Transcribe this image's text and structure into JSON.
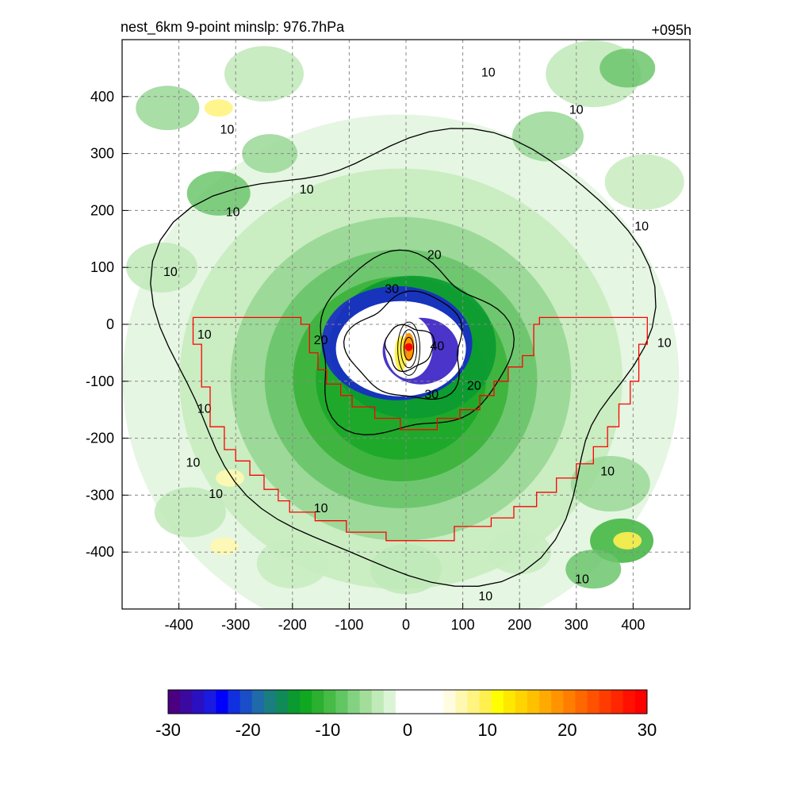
{
  "chart_data": {
    "type": "heatmap",
    "title_left": "nest_6km  9-point minslp: 976.7hPa",
    "title_right": "+095h",
    "xlim": [
      -500,
      500
    ],
    "ylim": [
      -500,
      500
    ],
    "x_ticks": [
      -400,
      -300,
      -200,
      -100,
      0,
      100,
      200,
      300,
      400
    ],
    "y_ticks": [
      400,
      300,
      200,
      100,
      0,
      -100,
      -200,
      -300,
      -400
    ],
    "grid": true,
    "storm_center": {
      "x": 5,
      "y": -40
    },
    "contour_levels": [
      10,
      20,
      30,
      40
    ],
    "contour_labels": [
      {
        "text": "10",
        "x": -315,
        "y": 335
      },
      {
        "text": "10",
        "x": -175,
        "y": 230
      },
      {
        "text": "10",
        "x": -305,
        "y": 190
      },
      {
        "text": "10",
        "x": -415,
        "y": 85
      },
      {
        "text": "10",
        "x": 145,
        "y": 435
      },
      {
        "text": "10",
        "x": 300,
        "y": 370
      },
      {
        "text": "10",
        "x": 415,
        "y": 165
      },
      {
        "text": "10",
        "x": -355,
        "y": -25
      },
      {
        "text": "10",
        "x": -355,
        "y": -155
      },
      {
        "text": "10",
        "x": -375,
        "y": -250
      },
      {
        "text": "10",
        "x": -335,
        "y": -305
      },
      {
        "text": "10",
        "x": -150,
        "y": -330
      },
      {
        "text": "10",
        "x": 455,
        "y": -40
      },
      {
        "text": "10",
        "x": 355,
        "y": -265
      },
      {
        "text": "10",
        "x": 140,
        "y": -485
      },
      {
        "text": "10",
        "x": 310,
        "y": -455
      },
      {
        "text": "20",
        "x": 50,
        "y": 115
      },
      {
        "text": "20",
        "x": -150,
        "y": -35
      },
      {
        "text": "20",
        "x": 120,
        "y": -115
      },
      {
        "text": "30",
        "x": -25,
        "y": 55
      },
      {
        "text": "30",
        "x": 45,
        "y": -130
      },
      {
        "text": "40",
        "x": 55,
        "y": -45
      }
    ],
    "colorbar": {
      "ticks": [
        -30,
        -20,
        -10,
        0,
        10,
        20,
        30
      ],
      "colors": [
        "#4b0082",
        "#3a0aa0",
        "#2a10c0",
        "#1a1ae0",
        "#0000ff",
        "#1030e0",
        "#1a4ec8",
        "#1f6aa8",
        "#1a7d80",
        "#108a58",
        "#0a9a30",
        "#10a820",
        "#2bb030",
        "#46bb46",
        "#62c662",
        "#82d282",
        "#a2de9a",
        "#c0eab8",
        "#dcf4d6",
        "#ffffff",
        "#ffffff",
        "#ffffff",
        "#ffffff",
        "#fffce0",
        "#fff8b0",
        "#fff480",
        "#fff050",
        "#ffff00",
        "#ffe800",
        "#ffd400",
        "#ffc000",
        "#ffaa00",
        "#ff9400",
        "#ff7e00",
        "#ff6800",
        "#ff5200",
        "#ff3c00",
        "#ff2600",
        "#ff1000",
        "#ff0000"
      ]
    },
    "ring_levels": [
      {
        "r": 0.98,
        "color": "#e4f6e0"
      },
      {
        "r": 0.78,
        "color": "#c8ecc0"
      },
      {
        "r": 0.6,
        "color": "#9ad896"
      },
      {
        "r": 0.48,
        "color": "#6cc66c"
      },
      {
        "r": 0.38,
        "color": "#3cb43c"
      },
      {
        "r": 0.3,
        "color": "#1ea92a"
      }
    ]
  }
}
